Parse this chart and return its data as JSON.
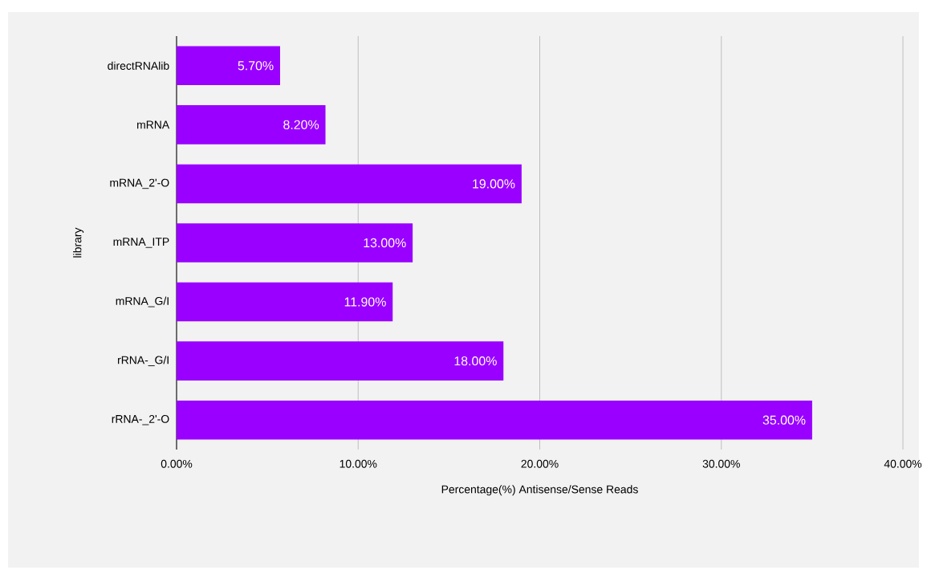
{
  "chart_data": {
    "type": "bar",
    "orientation": "horizontal",
    "xlabel": "Percentage(%) Antisense/Sense Reads",
    "ylabel": "library",
    "categories": [
      "directRNAlib",
      "mRNA",
      "mRNA_2'-O",
      "mRNA_ITP",
      "mRNA_G/I",
      "rRNA-_G/I",
      "rRNA-_2'-O"
    ],
    "values": [
      5.7,
      8.2,
      19.0,
      13.0,
      11.9,
      18.0,
      35.0
    ],
    "value_labels": [
      "5.70%",
      "8.20%",
      "19.00%",
      "13.00%",
      "11.90%",
      "18.00%",
      "35.00%"
    ],
    "color": "#9900ff",
    "xlim": [
      0,
      40
    ],
    "xticks": [
      {
        "value": 0,
        "label": "0.00%"
      },
      {
        "value": 10,
        "label": "10.00%"
      },
      {
        "value": 20,
        "label": "20.00%"
      },
      {
        "value": 30,
        "label": "30.00%"
      },
      {
        "value": 40,
        "label": "40.00%"
      }
    ],
    "grid": "x"
  }
}
